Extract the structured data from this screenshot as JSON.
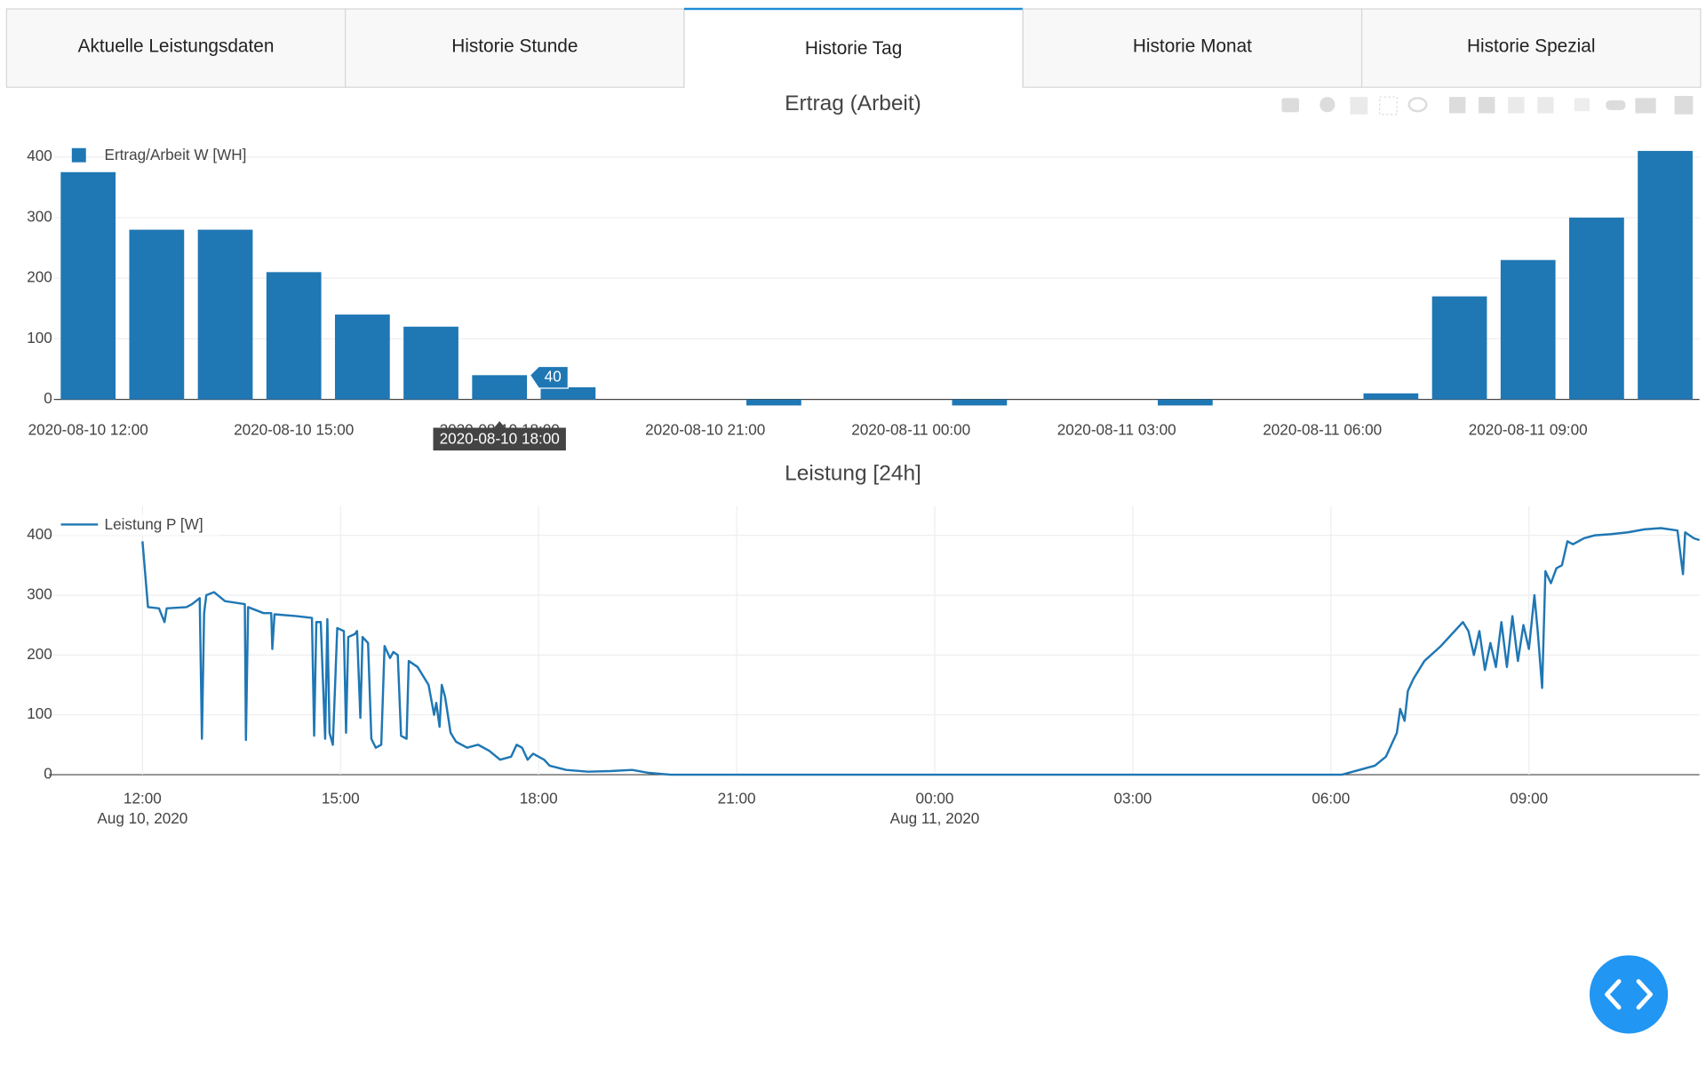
{
  "tabs": [
    {
      "label": "Aktuelle Leistungsdaten",
      "active": false
    },
    {
      "label": "Historie Stunde",
      "active": false
    },
    {
      "label": "Historie Tag",
      "active": true
    },
    {
      "label": "Historie Monat",
      "active": false
    },
    {
      "label": "Historie Spezial",
      "active": false
    }
  ],
  "chart_data": [
    {
      "type": "bar",
      "title": "Ertrag (Arbeit)",
      "categories": [
        "2020-08-10 12:00",
        "2020-08-10 13:00",
        "2020-08-10 14:00",
        "2020-08-10 15:00",
        "2020-08-10 16:00",
        "2020-08-10 17:00",
        "2020-08-10 18:00",
        "2020-08-10 19:00",
        "2020-08-10 20:00",
        "2020-08-10 21:00",
        "2020-08-10 22:00",
        "2020-08-10 23:00",
        "2020-08-11 00:00",
        "2020-08-11 01:00",
        "2020-08-11 02:00",
        "2020-08-11 03:00",
        "2020-08-11 04:00",
        "2020-08-11 05:00",
        "2020-08-11 06:00",
        "2020-08-11 07:00",
        "2020-08-11 08:00",
        "2020-08-11 09:00",
        "2020-08-11 10:00",
        "2020-08-11 11:00"
      ],
      "series": [
        {
          "name": "Ertrag/Arbeit W [WH]",
          "color": "#1f77b4",
          "values": [
            375,
            280,
            280,
            210,
            140,
            120,
            40,
            20,
            0,
            0,
            -10,
            0,
            0,
            -10,
            0,
            0,
            -10,
            0,
            0,
            10,
            170,
            230,
            300,
            410
          ]
        }
      ],
      "ylim": [
        -12,
        420
      ],
      "yticks": [
        0,
        100,
        200,
        300,
        400
      ],
      "xticks": [
        "2020-08-10 12:00",
        "2020-08-10 15:00",
        "2020-08-10 18:00",
        "2020-08-10 21:00",
        "2020-08-11 00:00",
        "2020-08-11 03:00",
        "2020-08-11 06:00",
        "2020-08-11 09:00"
      ],
      "grid": true,
      "legend": "top-left",
      "hover_index": 6
    },
    {
      "type": "line",
      "title": "Leistung [24h]",
      "series": [
        {
          "name": "Leistung P [W]",
          "color": "#1f77b4",
          "x": [
            "2020-08-10 12:00",
            "2020-08-10 12:05",
            "2020-08-10 12:15",
            "2020-08-10 12:20",
            "2020-08-10 12:22",
            "2020-08-10 12:40",
            "2020-08-10 12:45",
            "2020-08-10 12:52",
            "2020-08-10 12:54",
            "2020-08-10 12:56",
            "2020-08-10 12:58",
            "2020-08-10 13:05",
            "2020-08-10 13:15",
            "2020-08-10 13:33",
            "2020-08-10 13:34",
            "2020-08-10 13:36",
            "2020-08-10 13:50",
            "2020-08-10 13:57",
            "2020-08-10 13:58",
            "2020-08-10 14:00",
            "2020-08-10 14:20",
            "2020-08-10 14:34",
            "2020-08-10 14:36",
            "2020-08-10 14:38",
            "2020-08-10 14:42",
            "2020-08-10 14:46",
            "2020-08-10 14:48",
            "2020-08-10 14:50",
            "2020-08-10 14:53",
            "2020-08-10 14:57",
            "2020-08-10 15:03",
            "2020-08-10 15:05",
            "2020-08-10 15:07",
            "2020-08-10 15:13",
            "2020-08-10 15:15",
            "2020-08-10 15:18",
            "2020-08-10 15:20",
            "2020-08-10 15:25",
            "2020-08-10 15:28",
            "2020-08-10 15:32",
            "2020-08-10 15:37",
            "2020-08-10 15:40",
            "2020-08-10 15:45",
            "2020-08-10 15:48",
            "2020-08-10 15:52",
            "2020-08-10 15:55",
            "2020-08-10 16:00",
            "2020-08-10 16:02",
            "2020-08-10 16:10",
            "2020-08-10 16:20",
            "2020-08-10 16:25",
            "2020-08-10 16:27",
            "2020-08-10 16:30",
            "2020-08-10 16:32",
            "2020-08-10 16:35",
            "2020-08-10 16:40",
            "2020-08-10 16:45",
            "2020-08-10 16:55",
            "2020-08-10 17:05",
            "2020-08-10 17:15",
            "2020-08-10 17:25",
            "2020-08-10 17:35",
            "2020-08-10 17:40",
            "2020-08-10 17:45",
            "2020-08-10 17:50",
            "2020-08-10 17:55",
            "2020-08-10 18:05",
            "2020-08-10 18:10",
            "2020-08-10 18:25",
            "2020-08-10 18:45",
            "2020-08-10 19:05",
            "2020-08-10 19:25",
            "2020-08-10 19:40",
            "2020-08-10 20:00",
            "2020-08-11 06:10",
            "2020-08-11 06:20",
            "2020-08-11 06:40",
            "2020-08-11 06:50",
            "2020-08-11 06:55",
            "2020-08-11 07:00",
            "2020-08-11 07:03",
            "2020-08-11 07:07",
            "2020-08-11 07:10",
            "2020-08-11 07:15",
            "2020-08-11 07:25",
            "2020-08-11 07:40",
            "2020-08-11 07:50",
            "2020-08-11 08:00",
            "2020-08-11 08:05",
            "2020-08-11 08:10",
            "2020-08-11 08:15",
            "2020-08-11 08:20",
            "2020-08-11 08:25",
            "2020-08-11 08:30",
            "2020-08-11 08:35",
            "2020-08-11 08:40",
            "2020-08-11 08:45",
            "2020-08-11 08:50",
            "2020-08-11 08:55",
            "2020-08-11 09:00",
            "2020-08-11 09:05",
            "2020-08-11 09:08",
            "2020-08-11 09:12",
            "2020-08-11 09:15",
            "2020-08-11 09:20",
            "2020-08-11 09:25",
            "2020-08-11 09:30",
            "2020-08-11 09:35",
            "2020-08-11 09:40",
            "2020-08-11 09:50",
            "2020-08-11 10:00",
            "2020-08-11 10:15",
            "2020-08-11 10:30",
            "2020-08-11 10:45",
            "2020-08-11 11:00",
            "2020-08-11 11:15",
            "2020-08-11 11:20",
            "2020-08-11 11:22",
            "2020-08-11 11:30",
            "2020-08-11 11:35"
          ],
          "values": [
            390,
            280,
            278,
            255,
            278,
            280,
            285,
            295,
            60,
            270,
            300,
            305,
            290,
            285,
            58,
            280,
            270,
            270,
            210,
            268,
            265,
            262,
            65,
            255,
            255,
            60,
            260,
            70,
            50,
            245,
            240,
            70,
            230,
            235,
            240,
            95,
            230,
            220,
            60,
            45,
            50,
            215,
            195,
            205,
            200,
            65,
            60,
            190,
            180,
            150,
            100,
            120,
            80,
            150,
            130,
            70,
            55,
            45,
            50,
            40,
            25,
            30,
            50,
            45,
            25,
            35,
            25,
            15,
            8,
            5,
            6,
            8,
            3,
            0,
            0,
            5,
            15,
            30,
            50,
            70,
            110,
            90,
            140,
            160,
            190,
            215,
            235,
            255,
            240,
            200,
            240,
            175,
            220,
            180,
            255,
            180,
            265,
            190,
            250,
            210,
            300,
            240,
            145,
            340,
            320,
            345,
            350,
            390,
            385,
            395,
            400,
            402,
            405,
            410,
            412,
            408,
            335,
            405,
            395,
            392
          ]
        }
      ],
      "xlim": [
        "2020-08-10 10:35",
        "2020-08-11 11:35"
      ],
      "xticks": [
        {
          "value": "2020-08-10 12:00",
          "label": "12:00",
          "date_label": "Aug 10, 2020"
        },
        {
          "value": "2020-08-10 15:00",
          "label": "15:00"
        },
        {
          "value": "2020-08-10 18:00",
          "label": "18:00"
        },
        {
          "value": "2020-08-10 21:00",
          "label": "21:00"
        },
        {
          "value": "2020-08-11 00:00",
          "label": "00:00",
          "date_label": "Aug 11, 2020"
        },
        {
          "value": "2020-08-11 03:00",
          "label": "03:00"
        },
        {
          "value": "2020-08-11 06:00",
          "label": "06:00"
        },
        {
          "value": "2020-08-11 09:00",
          "label": "09:00"
        }
      ],
      "ylim": [
        0,
        449
      ],
      "yticks": [
        0,
        100,
        200,
        300,
        400
      ],
      "grid": true,
      "legend": "top-left"
    }
  ]
}
